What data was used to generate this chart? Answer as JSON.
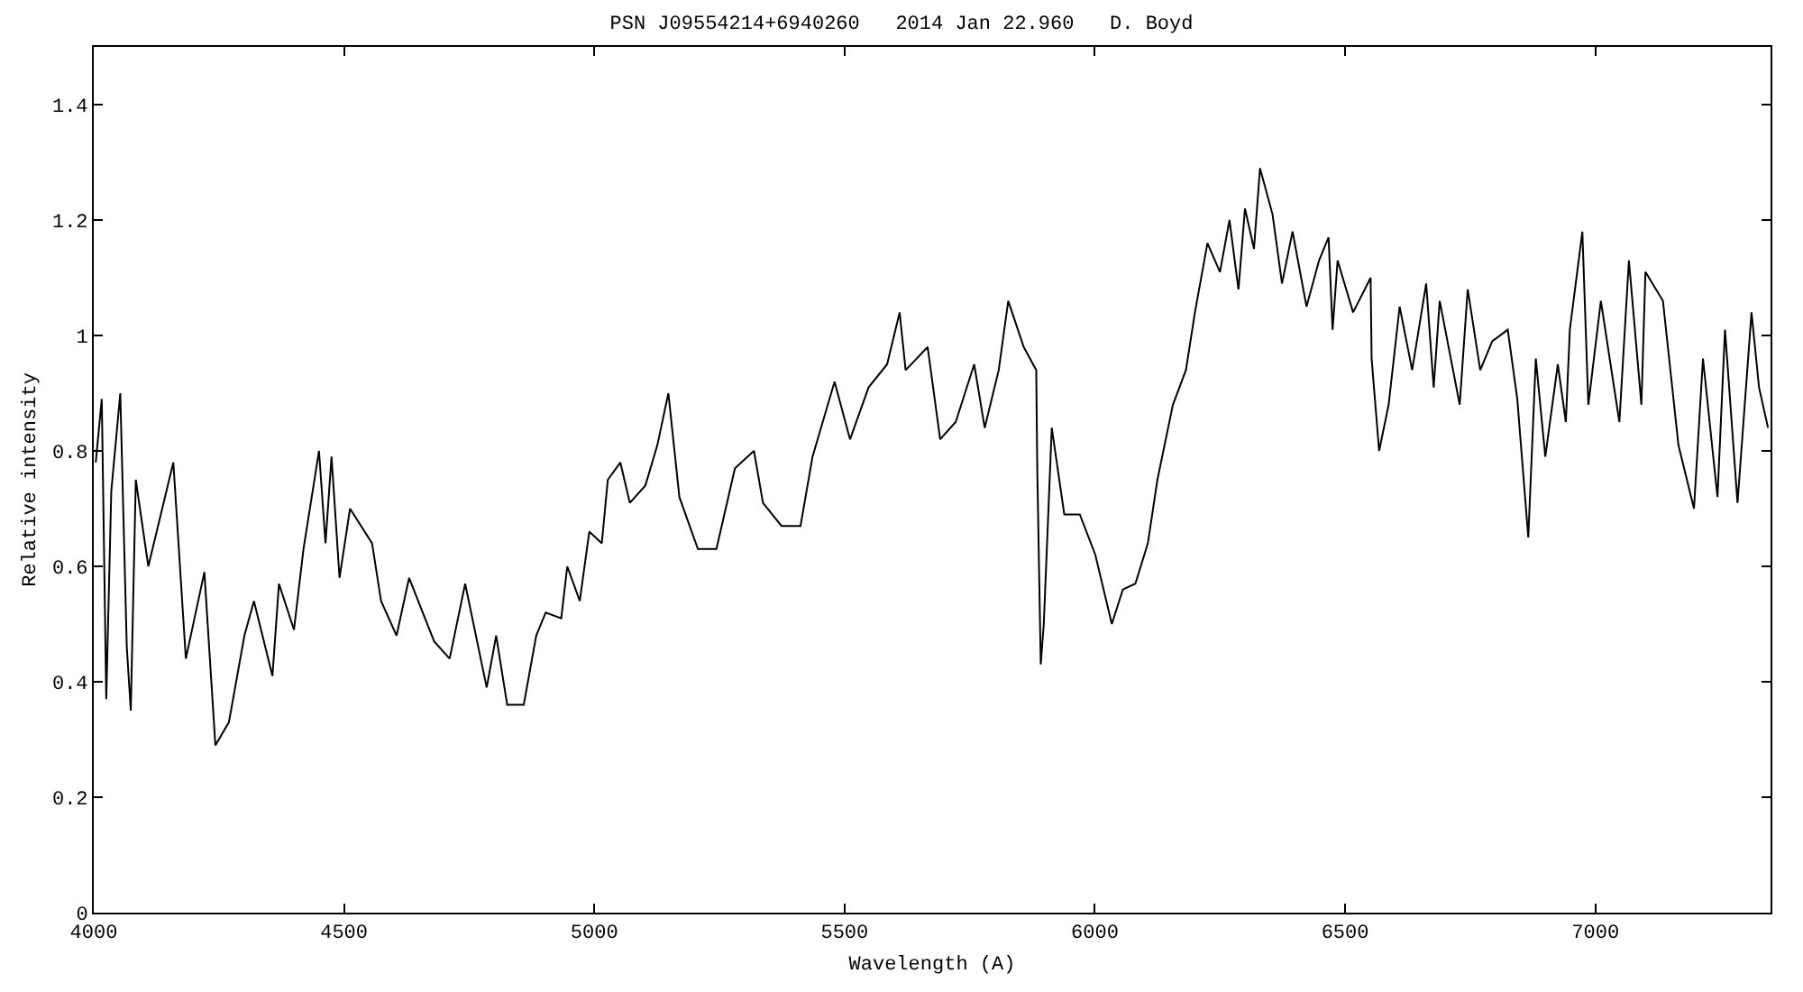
{
  "chart_data": {
    "type": "line",
    "title": "PSN J09554214+6940260   2014 Jan 22.960   D. Boyd",
    "xlabel": "Wavelength (A)",
    "ylabel": "Relative intensity",
    "xlim": [
      4000,
      7350
    ],
    "xticks": [
      4000,
      4500,
      5000,
      5500,
      6000,
      6500,
      7000
    ],
    "ylim": [
      0,
      1.5
    ],
    "yticks": [
      0,
      0.2,
      0.4,
      0.6,
      0.8,
      1,
      1.2,
      1.4
    ],
    "grid": false,
    "marker": "none",
    "line_style": "solid",
    "series": [
      {
        "color": "#000000",
        "x": [
          4004,
          4016,
          4025,
          4035,
          4053,
          4066,
          4074,
          4084,
          4109,
          4159,
          4184,
          4221,
          4243,
          4270,
          4301,
          4320,
          4357,
          4370,
          4400,
          4419,
          4450,
          4463,
          4475,
          4491,
          4512,
          4556,
          4574,
          4605,
          4630,
          4680,
          4711,
          4742,
          4785,
          4804,
          4826,
          4859,
          4884,
          4903,
          4934,
          4946,
          4971,
          4990,
          5015,
          5027,
          5052,
          5071,
          5102,
          5126,
          5148,
          5170,
          5207,
          5244,
          5281,
          5319,
          5337,
          5374,
          5412,
          5436,
          5480,
          5511,
          5548,
          5585,
          5610,
          5622,
          5666,
          5691,
          5722,
          5759,
          5780,
          5808,
          5827,
          5858,
          5883,
          5885,
          5892,
          5898,
          5914,
          5939,
          5970,
          6001,
          6034,
          6056,
          6081,
          6106,
          6125,
          6156,
          6182,
          6200,
          6225,
          6250,
          6269,
          6287,
          6300,
          6318,
          6330,
          6355,
          6374,
          6395,
          6423,
          6448,
          6467,
          6475,
          6485,
          6516,
          6551,
          6553,
          6568,
          6587,
          6609,
          6634,
          6662,
          6677,
          6689,
          6729,
          6745,
          6770,
          6794,
          6825,
          6844,
          6866,
          6881,
          6900,
          6925,
          6941,
          6949,
          6974,
          6986,
          7011,
          7048,
          7067,
          7092,
          7100,
          7135,
          7166,
          7197,
          7215,
          7244,
          7259,
          7284,
          7312,
          7327,
          7345
        ],
        "values": [
          0.78,
          0.89,
          0.37,
          0.73,
          0.9,
          0.46,
          0.35,
          0.75,
          0.6,
          0.78,
          0.44,
          0.59,
          0.29,
          0.33,
          0.48,
          0.54,
          0.41,
          0.57,
          0.49,
          0.63,
          0.8,
          0.64,
          0.79,
          0.58,
          0.7,
          0.64,
          0.54,
          0.48,
          0.58,
          0.47,
          0.44,
          0.57,
          0.39,
          0.48,
          0.36,
          0.36,
          0.48,
          0.52,
          0.51,
          0.6,
          0.54,
          0.66,
          0.64,
          0.75,
          0.78,
          0.71,
          0.74,
          0.81,
          0.9,
          0.72,
          0.63,
          0.63,
          0.77,
          0.8,
          0.71,
          0.67,
          0.67,
          0.79,
          0.92,
          0.82,
          0.91,
          0.95,
          1.04,
          0.94,
          0.98,
          0.82,
          0.85,
          0.95,
          0.84,
          0.94,
          1.06,
          0.98,
          0.94,
          0.77,
          0.43,
          0.5,
          0.84,
          0.69,
          0.69,
          0.62,
          0.5,
          0.56,
          0.57,
          0.64,
          0.75,
          0.88,
          0.94,
          1.04,
          1.16,
          1.11,
          1.2,
          1.08,
          1.22,
          1.15,
          1.29,
          1.21,
          1.09,
          1.18,
          1.05,
          1.13,
          1.17,
          1.01,
          1.13,
          1.04,
          1.1,
          0.96,
          0.8,
          0.88,
          1.05,
          0.94,
          1.09,
          0.91,
          1.06,
          0.88,
          1.08,
          0.94,
          0.99,
          1.01,
          0.89,
          0.65,
          0.96,
          0.79,
          0.95,
          0.85,
          1.01,
          1.18,
          0.88,
          1.06,
          0.85,
          1.13,
          0.88,
          1.11,
          1.06,
          0.81,
          0.7,
          0.96,
          0.72,
          1.01,
          0.71,
          1.04,
          0.91,
          0.84
        ]
      }
    ]
  }
}
